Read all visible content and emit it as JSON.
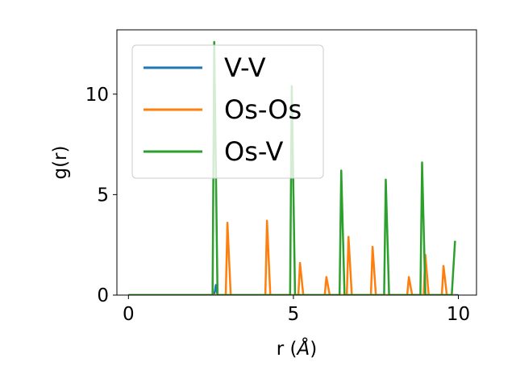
{
  "chart_data": {
    "type": "line",
    "xlabel": "r (",
    "xlabel_unit": "Å",
    "xlabel_close": ")",
    "ylabel": "g(r)",
    "xlim": [
      -0.35,
      10.55
    ],
    "ylim": [
      0,
      13.2
    ],
    "xticks": [
      0,
      5,
      10
    ],
    "yticks": [
      0,
      5,
      10
    ],
    "grid": false,
    "legend_position": "upper-left",
    "series": [
      {
        "name": "V-V",
        "color": "#1f77b4",
        "points": [
          [
            0,
            0
          ],
          [
            2.6,
            0
          ],
          [
            2.65,
            0.5
          ],
          [
            2.7,
            0
          ],
          [
            10,
            0
          ]
        ]
      },
      {
        "name": "Os-Os",
        "color": "#ff7f0e",
        "points": [
          [
            0,
            0
          ],
          [
            2.95,
            0
          ],
          [
            3.0,
            3.6
          ],
          [
            3.1,
            0
          ],
          [
            4.15,
            0
          ],
          [
            4.2,
            3.7
          ],
          [
            4.3,
            0
          ],
          [
            5.15,
            0
          ],
          [
            5.2,
            1.6
          ],
          [
            5.3,
            0
          ],
          [
            5.95,
            0
          ],
          [
            6.0,
            0.9
          ],
          [
            6.1,
            0
          ],
          [
            6.62,
            0
          ],
          [
            6.67,
            2.9
          ],
          [
            6.77,
            0
          ],
          [
            7.35,
            0
          ],
          [
            7.4,
            2.4
          ],
          [
            7.5,
            0
          ],
          [
            8.45,
            0
          ],
          [
            8.5,
            0.9
          ],
          [
            8.6,
            0
          ],
          [
            8.95,
            0
          ],
          [
            9.0,
            2.0
          ],
          [
            9.1,
            0
          ],
          [
            9.5,
            0
          ],
          [
            9.55,
            1.45
          ],
          [
            9.65,
            0
          ],
          [
            9.9,
            0
          ]
        ]
      },
      {
        "name": "Os-V",
        "color": "#2ca02c",
        "points": [
          [
            0,
            0
          ],
          [
            2.55,
            0
          ],
          [
            2.6,
            12.6
          ],
          [
            2.7,
            0
          ],
          [
            4.9,
            0
          ],
          [
            4.95,
            10.4
          ],
          [
            5.05,
            0
          ],
          [
            6.4,
            0
          ],
          [
            6.45,
            6.2
          ],
          [
            6.55,
            0
          ],
          [
            7.75,
            0
          ],
          [
            7.8,
            5.75
          ],
          [
            7.9,
            0
          ],
          [
            8.85,
            0
          ],
          [
            8.9,
            6.6
          ],
          [
            9.0,
            0
          ],
          [
            9.8,
            0
          ],
          [
            9.9,
            2.7
          ]
        ]
      }
    ]
  }
}
